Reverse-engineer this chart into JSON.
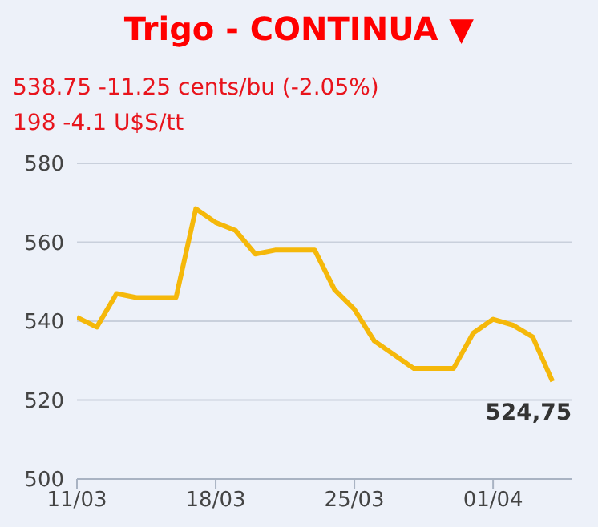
{
  "chart_data": {
    "type": "line",
    "title": "Trigo - CONTINUA ▼",
    "subtitle": "538.75 -11.25 cents/bu (-2.05%)",
    "annotations": [
      "198 -4.1 U$S/tt",
      {
        "text": "524,75",
        "x": "--04-04",
        "y": 524.75
      }
    ],
    "x": [
      "--03-11",
      "--03-12",
      "--03-13",
      "--03-14",
      "--03-15",
      "--03-16",
      "--03-17",
      "--03-18",
      "--03-19",
      "--03-20",
      "--03-21",
      "--03-22",
      "--03-23",
      "--03-24",
      "--03-25",
      "--03-26",
      "--03-27",
      "--03-28",
      "--03-29",
      "--03-30",
      "--03-31",
      "--04-01",
      "--04-02",
      "--04-03",
      "--04-04"
    ],
    "series": [
      {
        "color": "#f5b80a",
        "values": [
          541,
          538.5,
          547,
          546,
          546,
          546,
          568.5,
          565,
          563,
          557,
          558,
          558,
          558,
          548,
          543,
          535,
          531.5,
          528,
          528,
          528,
          537,
          540.5,
          539,
          536,
          524.75
        ]
      }
    ],
    "xlim": [
      "--03-11",
      "--04-05"
    ],
    "xticks": [
      {
        "value": "--03-11",
        "label": "11/03"
      },
      {
        "value": "--03-18",
        "label": "18/03"
      },
      {
        "value": "--03-25",
        "label": "25/03"
      },
      {
        "value": "--04-01",
        "label": "01/04"
      }
    ],
    "ylim": [
      500,
      580
    ],
    "yticks": [
      500,
      520,
      540,
      560,
      580
    ],
    "grid": "y",
    "marker": "none",
    "line_style": "solid"
  }
}
